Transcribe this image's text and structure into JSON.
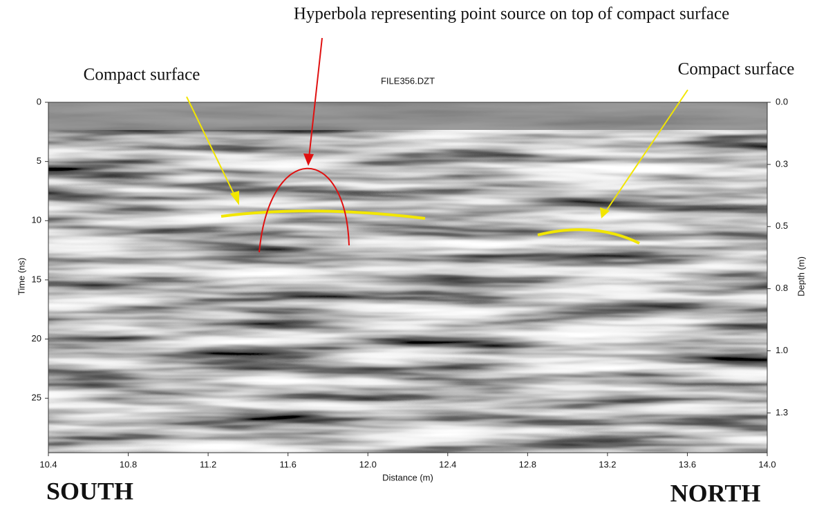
{
  "chart_data": {
    "type": "radargram",
    "title": "FILE356.DZT",
    "x_label": "Distance (m)",
    "y_label": "Time (ns)",
    "y2_label": "Depth (m)",
    "xlim": [
      10.4,
      14.0
    ],
    "xticks": [
      10.4,
      10.8,
      11.2,
      11.6,
      {
        "value": 12.0,
        "label": "12.0"
      },
      12.4,
      12.8,
      13.2,
      13.6,
      {
        "value": 14.0,
        "label": "14.0"
      }
    ],
    "ylim": [
      29.6,
      0
    ],
    "yticks": [
      0,
      5,
      10,
      15,
      20,
      25
    ],
    "y2lim": [
      1.41,
      0
    ],
    "y2ticks": [
      {
        "value": 0,
        "label": "0.0"
      },
      {
        "value": 0.25,
        "label": "0.3"
      },
      0.5,
      {
        "value": 0.75,
        "label": "0.8"
      },
      {
        "value": 1.0,
        "label": "1.0"
      },
      {
        "value": 1.25,
        "label": "1.3"
      }
    ],
    "annotations": {
      "hyperbola": "Hyperbola representing point source on top of compact surface",
      "compact_left": "Compact surface",
      "compact_right": "Compact surface",
      "south": "SOUTH",
      "north": "NORTH"
    }
  }
}
